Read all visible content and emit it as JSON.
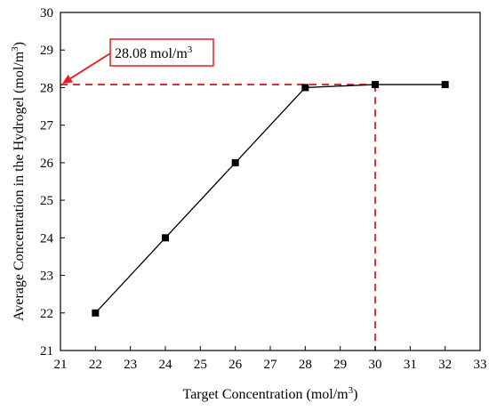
{
  "chart_data": {
    "type": "line",
    "xlabel": "Target Concentration (mol/m",
    "xlabel_sup": "3",
    "xlabel_end": ")",
    "ylabel": "Average Concentration in the Hydrogel (mol/m",
    "ylabel_sup": "3",
    "ylabel_end": ")",
    "xlim": [
      21,
      33
    ],
    "ylim": [
      21,
      30
    ],
    "xticks": [
      21,
      22,
      23,
      24,
      25,
      26,
      27,
      28,
      29,
      30,
      31,
      32,
      33
    ],
    "yticks": [
      21,
      22,
      23,
      24,
      25,
      26,
      27,
      28,
      29,
      30
    ],
    "grid": false,
    "series": [
      {
        "x": [
          22,
          24,
          26,
          28,
          30,
          32
        ],
        "y": [
          22,
          24,
          26,
          28,
          28.08,
          28.08
        ],
        "color": "#000000",
        "marker": "square"
      }
    ],
    "reference_lines": {
      "y": 28.08,
      "x": 30,
      "color": "#e02020"
    },
    "annotation": {
      "text": "28.08 mol/m",
      "text_sup": "3",
      "color": "#e02020",
      "arrow_target": [
        21,
        28.08
      ]
    }
  }
}
